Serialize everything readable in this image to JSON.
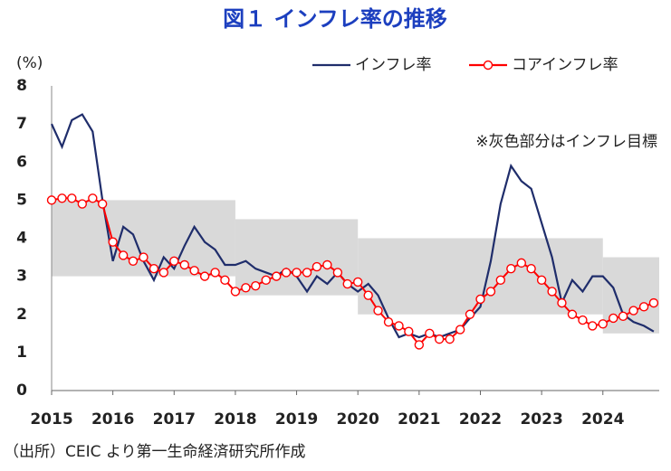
{
  "chart_data": {
    "type": "line",
    "title": "図１ インフレ率の推移",
    "y_axis_label": "(%)",
    "annotation": "※灰色部分はインフレ目標",
    "source": "（出所）CEIC より第一生命経済研究所作成",
    "xlim": [
      2015,
      2024.92
    ],
    "xticks": [
      2015,
      2016,
      2017,
      2018,
      2019,
      2020,
      2021,
      2022,
      2023,
      2024
    ],
    "ylim": [
      0,
      8
    ],
    "yticks": [
      0,
      1,
      2,
      3,
      4,
      5,
      6,
      7,
      8
    ],
    "target_band": {
      "color": "#d9d9d9",
      "segments": [
        {
          "x": [
            2015,
            2018
          ],
          "range": [
            3,
            5
          ]
        },
        {
          "x": [
            2018,
            2020
          ],
          "range": [
            2.5,
            4.5
          ]
        },
        {
          "x": [
            2020,
            2024
          ],
          "range": [
            2,
            4
          ]
        },
        {
          "x": [
            2024,
            2024.92
          ],
          "range": [
            1.5,
            3.5
          ]
        }
      ]
    },
    "x": [
      2015.0,
      2015.17,
      2015.33,
      2015.5,
      2015.67,
      2015.83,
      2016.0,
      2016.17,
      2016.33,
      2016.5,
      2016.67,
      2016.83,
      2017.0,
      2017.17,
      2017.33,
      2017.5,
      2017.67,
      2017.83,
      2018.0,
      2018.17,
      2018.33,
      2018.5,
      2018.67,
      2018.83,
      2019.0,
      2019.17,
      2019.33,
      2019.5,
      2019.67,
      2019.83,
      2020.0,
      2020.17,
      2020.33,
      2020.5,
      2020.67,
      2020.83,
      2021.0,
      2021.17,
      2021.33,
      2021.5,
      2021.67,
      2021.83,
      2022.0,
      2022.17,
      2022.33,
      2022.5,
      2022.67,
      2022.83,
      2023.0,
      2023.17,
      2023.33,
      2023.5,
      2023.67,
      2023.83,
      2024.0,
      2024.17,
      2024.33,
      2024.5,
      2024.67,
      2024.83
    ],
    "series": [
      {
        "name": "インフレ率",
        "color": "#1f2d6b",
        "markers": false,
        "values": [
          7.0,
          6.4,
          7.1,
          7.25,
          6.8,
          5.0,
          3.4,
          4.3,
          4.1,
          3.4,
          2.9,
          3.5,
          3.2,
          3.8,
          4.3,
          3.9,
          3.7,
          3.3,
          3.3,
          3.4,
          3.2,
          3.1,
          3.0,
          3.2,
          3.0,
          2.6,
          3.0,
          2.8,
          3.1,
          2.8,
          2.6,
          2.8,
          2.5,
          1.9,
          1.4,
          1.5,
          1.4,
          1.5,
          1.4,
          1.5,
          1.6,
          1.9,
          2.2,
          3.4,
          4.9,
          5.9,
          5.5,
          5.3,
          4.4,
          3.5,
          2.3,
          2.9,
          2.6,
          3.0,
          3.0,
          2.7,
          2.0,
          1.8,
          1.7,
          1.55
        ]
      },
      {
        "name": "コアインフレ率",
        "color": "#ff0000",
        "markers": true,
        "values": [
          5.0,
          5.05,
          5.05,
          4.9,
          5.05,
          4.9,
          3.9,
          3.55,
          3.4,
          3.5,
          3.2,
          3.1,
          3.4,
          3.3,
          3.15,
          3.0,
          3.1,
          2.9,
          2.6,
          2.7,
          2.75,
          2.9,
          3.0,
          3.1,
          3.1,
          3.1,
          3.25,
          3.3,
          3.1,
          2.8,
          2.85,
          2.5,
          2.1,
          1.8,
          1.7,
          1.55,
          1.2,
          1.5,
          1.35,
          1.35,
          1.6,
          2.0,
          2.4,
          2.6,
          2.9,
          3.2,
          3.35,
          3.2,
          2.9,
          2.6,
          2.3,
          2.0,
          1.85,
          1.7,
          1.75,
          1.9,
          1.95,
          2.1,
          2.2,
          2.3
        ]
      }
    ]
  }
}
